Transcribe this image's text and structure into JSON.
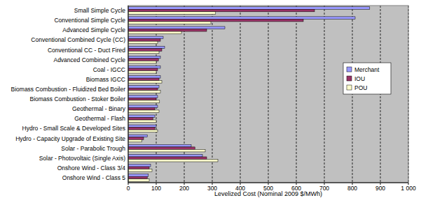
{
  "chart_data": {
    "type": "bar",
    "orientation": "horizontal",
    "xlabel": "Levelized Cost (Nominal 2009 $/MWh)",
    "categories": [
      "Small Simple Cycle",
      "Conventional  Simple Cycle",
      "Advanced Simple Cycle",
      "Conventional  Combined Cycle (CC)",
      "Conventional  CC - Duct Fired",
      "Advanced Combined Cycle",
      "Coal - IGCC",
      "Biomass IGCC",
      "Biomass Combustion - Fluidized Bed Boiler",
      "Biomass Combustion - Stoker Boiler",
      "Geothermal - Binary",
      "Geothermal - Flash",
      "Hydro - Small Scale & Developed  Sites",
      "Hydro - Capacity Upgrade  of Existing Site",
      "Solar - Parabolic Trough",
      "Solar - Photovoltaic (Single Axis)",
      "Onshore Wind - Class 3/4",
      "Onshore Wind - Class 5"
    ],
    "series": [
      {
        "name": "Merchant",
        "color": "#9999ff",
        "values": [
          862,
          810,
          345,
          125,
          130,
          115,
          115,
          115,
          110,
          105,
          105,
          95,
          100,
          68,
          225,
          265,
          80,
          72
        ]
      },
      {
        "name": "IOU",
        "color": "#993366",
        "values": [
          665,
          625,
          280,
          115,
          120,
          108,
          105,
          110,
          105,
          100,
          95,
          88,
          95,
          55,
          238,
          280,
          75,
          68
        ]
      },
      {
        "name": "POU",
        "color": "#ffffcc",
        "values": [
          312,
          295,
          190,
          105,
          110,
          100,
          100,
          120,
          115,
          112,
          110,
          100,
          105,
          48,
          275,
          320,
          85,
          75
        ]
      }
    ],
    "xlim": [
      0,
      1000
    ],
    "xticks": [
      0,
      100,
      200,
      300,
      400,
      500,
      600,
      700,
      800,
      900,
      {
        "value": 1000,
        "label": "1 000"
      }
    ],
    "grid": true,
    "legend": "right"
  }
}
